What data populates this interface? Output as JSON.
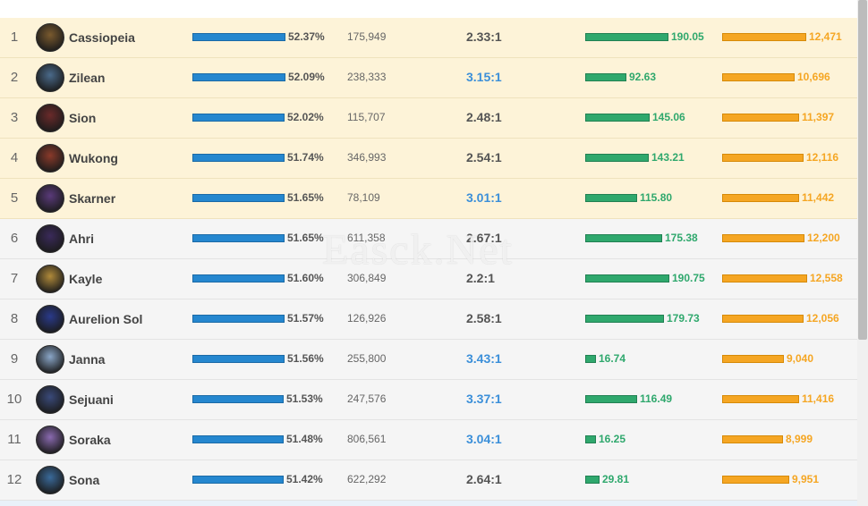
{
  "rows": [
    {
      "rank": "1",
      "name": "Cassiopeia",
      "winrate": "52.37%",
      "winrate_fraction": 0.5237,
      "games": "175,949",
      "kda": "2.33:1",
      "kda_highlight": false,
      "cs": "190.05",
      "cs_value": 190.05,
      "gold": "12,471",
      "gold_value": 12471,
      "highlight": true,
      "avatar_color": "#7a5a2e"
    },
    {
      "rank": "2",
      "name": "Zilean",
      "winrate": "52.09%",
      "winrate_fraction": 0.5209,
      "games": "238,333",
      "kda": "3.15:1",
      "kda_highlight": true,
      "cs": "92.63",
      "cs_value": 92.63,
      "gold": "10,696",
      "gold_value": 10696,
      "highlight": true,
      "avatar_color": "#4a6a8a"
    },
    {
      "rank": "3",
      "name": "Sion",
      "winrate": "52.02%",
      "winrate_fraction": 0.5202,
      "games": "115,707",
      "kda": "2.48:1",
      "kda_highlight": false,
      "cs": "145.06",
      "cs_value": 145.06,
      "gold": "11,397",
      "gold_value": 11397,
      "highlight": true,
      "avatar_color": "#6a2a2a"
    },
    {
      "rank": "4",
      "name": "Wukong",
      "winrate": "51.74%",
      "winrate_fraction": 0.5174,
      "games": "346,993",
      "kda": "2.54:1",
      "kda_highlight": false,
      "cs": "143.21",
      "cs_value": 143.21,
      "gold": "12,116",
      "gold_value": 12116,
      "highlight": true,
      "avatar_color": "#8a3a2a"
    },
    {
      "rank": "5",
      "name": "Skarner",
      "winrate": "51.65%",
      "winrate_fraction": 0.5165,
      "games": "78,109",
      "kda": "3.01:1",
      "kda_highlight": true,
      "cs": "115.80",
      "cs_value": 115.8,
      "gold": "11,442",
      "gold_value": 11442,
      "highlight": true,
      "avatar_color": "#5a3a7a"
    },
    {
      "rank": "6",
      "name": "Ahri",
      "winrate": "51.65%",
      "winrate_fraction": 0.5165,
      "games": "611,358",
      "kda": "2.67:1",
      "kda_highlight": false,
      "cs": "175.38",
      "cs_value": 175.38,
      "gold": "12,200",
      "gold_value": 12200,
      "highlight": false,
      "avatar_color": "#3a2a5a"
    },
    {
      "rank": "7",
      "name": "Kayle",
      "winrate": "51.60%",
      "winrate_fraction": 0.516,
      "games": "306,849",
      "kda": "2.2:1",
      "kda_highlight": false,
      "cs": "190.75",
      "cs_value": 190.75,
      "gold": "12,558",
      "gold_value": 12558,
      "highlight": false,
      "avatar_color": "#b08a3a"
    },
    {
      "rank": "8",
      "name": "Aurelion Sol",
      "winrate": "51.57%",
      "winrate_fraction": 0.5157,
      "games": "126,926",
      "kda": "2.58:1",
      "kda_highlight": false,
      "cs": "179.73",
      "cs_value": 179.73,
      "gold": "12,056",
      "gold_value": 12056,
      "highlight": false,
      "avatar_color": "#2a3a8a"
    },
    {
      "rank": "9",
      "name": "Janna",
      "winrate": "51.56%",
      "winrate_fraction": 0.5156,
      "games": "255,800",
      "kda": "3.43:1",
      "kda_highlight": true,
      "cs": "16.74",
      "cs_value": 16.74,
      "gold": "9,040",
      "gold_value": 9040,
      "highlight": false,
      "avatar_color": "#8aa6c8"
    },
    {
      "rank": "10",
      "name": "Sejuani",
      "winrate": "51.53%",
      "winrate_fraction": 0.5153,
      "games": "247,576",
      "kda": "3.37:1",
      "kda_highlight": true,
      "cs": "116.49",
      "cs_value": 116.49,
      "gold": "11,416",
      "gold_value": 11416,
      "highlight": false,
      "avatar_color": "#3a4a7a"
    },
    {
      "rank": "11",
      "name": "Soraka",
      "winrate": "51.48%",
      "winrate_fraction": 0.5148,
      "games": "806,561",
      "kda": "3.04:1",
      "kda_highlight": true,
      "cs": "16.25",
      "cs_value": 16.25,
      "gold": "8,999",
      "gold_value": 8999,
      "highlight": false,
      "avatar_color": "#8a6ab0"
    },
    {
      "rank": "12",
      "name": "Sona",
      "winrate": "51.42%",
      "winrate_fraction": 0.5142,
      "games": "622,292",
      "kda": "2.64:1",
      "kda_highlight": false,
      "cs": "29.81",
      "cs_value": 29.81,
      "gold": "9,951",
      "gold_value": 9951,
      "highlight": false,
      "avatar_color": "#3a6a9a"
    }
  ],
  "watermark": "Easck.Net",
  "colors": {
    "winrate_bar": "#2587cf",
    "cs_bar": "#2fa86d",
    "gold_bar": "#f5a623",
    "highlight_row": "#fdf3d8",
    "kda_highlight": "#3b8fd9"
  }
}
